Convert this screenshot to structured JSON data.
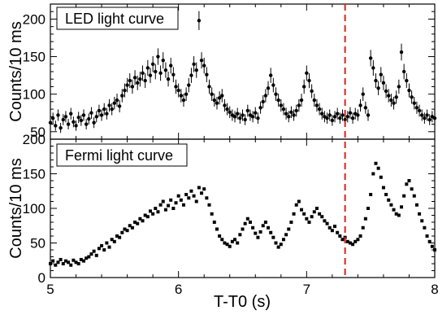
{
  "chart_data": [
    {
      "type": "scatter",
      "title": "",
      "legend_label": "LED light curve",
      "legend_position": "top-left",
      "xlabel": "T-T0 (s)",
      "ylabel": "Counts/10 ms",
      "xlim": [
        5,
        8
      ],
      "ylim": [
        40,
        220
      ],
      "y_ticks": [
        "50",
        "100",
        "150",
        "200"
      ],
      "error_bars": true,
      "marker_color": "#000000",
      "series": [
        {
          "x": [
            5.0,
            5.02,
            5.04,
            5.06,
            5.08,
            5.1,
            5.12,
            5.14,
            5.16,
            5.18,
            5.2,
            5.22,
            5.24,
            5.26,
            5.28,
            5.3,
            5.32,
            5.34,
            5.36,
            5.38,
            5.4,
            5.42,
            5.44,
            5.46,
            5.48,
            5.5,
            5.52,
            5.54,
            5.56,
            5.58,
            5.6,
            5.62,
            5.64,
            5.66,
            5.68,
            5.7,
            5.72,
            5.74,
            5.76,
            5.78,
            5.8,
            5.82,
            5.84,
            5.86,
            5.88,
            5.9,
            5.92,
            5.94,
            5.96,
            5.98,
            6.0,
            6.02,
            6.04,
            6.06,
            6.08,
            6.1,
            6.12,
            6.14,
            6.16,
            6.18,
            6.2,
            6.22,
            6.24,
            6.26,
            6.28,
            6.3,
            6.32,
            6.34,
            6.36,
            6.38,
            6.4,
            6.42,
            6.44,
            6.46,
            6.48,
            6.5,
            6.52,
            6.54,
            6.56,
            6.58,
            6.6,
            6.62,
            6.64,
            6.66,
            6.68,
            6.7,
            6.72,
            6.74,
            6.76,
            6.78,
            6.8,
            6.82,
            6.84,
            6.86,
            6.88,
            6.9,
            6.92,
            6.94,
            6.96,
            6.98,
            7.0,
            7.02,
            7.04,
            7.06,
            7.08,
            7.1,
            7.12,
            7.14,
            7.16,
            7.18,
            7.2,
            7.22,
            7.24,
            7.26,
            7.28,
            7.3,
            7.32,
            7.34,
            7.36,
            7.38,
            7.4,
            7.42,
            7.44,
            7.46,
            7.48,
            7.5,
            7.52,
            7.54,
            7.56,
            7.58,
            7.6,
            7.62,
            7.64,
            7.66,
            7.68,
            7.7,
            7.72,
            7.74,
            7.76,
            7.78,
            7.8,
            7.82,
            7.84,
            7.86,
            7.88,
            7.9,
            7.92,
            7.94,
            7.96,
            7.98,
            8.0
          ],
          "y": [
            62,
            68,
            58,
            72,
            55,
            66,
            70,
            60,
            74,
            63,
            58,
            69,
            65,
            72,
            60,
            67,
            75,
            62,
            70,
            78,
            72,
            80,
            74,
            85,
            80,
            88,
            92,
            84,
            98,
            105,
            112,
            118,
            110,
            122,
            115,
            120,
            128,
            118,
            135,
            125,
            140,
            130,
            150,
            128,
            145,
            132,
            120,
            138,
            126,
            110,
            105,
            98,
            92,
            100,
            112,
            125,
            140,
            132,
            198,
            145,
            138,
            126,
            110,
            100,
            92,
            88,
            95,
            98,
            85,
            80,
            76,
            72,
            70,
            74,
            68,
            72,
            66,
            78,
            72,
            70,
            75,
            68,
            82,
            90,
            98,
            108,
            125,
            112,
            100,
            92,
            85,
            80,
            74,
            70,
            76,
            72,
            78,
            85,
            92,
            110,
            128,
            118,
            104,
            92,
            85,
            80,
            74,
            70,
            68,
            72,
            65,
            70,
            74,
            68,
            72,
            66,
            70,
            75,
            68,
            74,
            72,
            85,
            100,
            82,
            72,
            148,
            135,
            118,
            108,
            126,
            115,
            104,
            98,
            92,
            88,
            96,
            110,
            156,
            130,
            118,
            105,
            96,
            88,
            82,
            78,
            72,
            68,
            72,
            66,
            70,
            68
          ]
        }
      ]
    },
    {
      "type": "scatter",
      "title": "",
      "legend_label": "Fermi light curve",
      "legend_position": "top-left",
      "xlabel": "T-T0 (s)",
      "ylabel": "Counts/10 ms",
      "xlim": [
        5,
        8
      ],
      "ylim": [
        0,
        200
      ],
      "x_ticks": [
        "5",
        "6",
        "7",
        "8"
      ],
      "y_ticks": [
        "0",
        "50",
        "100",
        "150",
        "200"
      ],
      "marker_color": "#000000",
      "series": [
        {
          "x": [
            5.0,
            5.02,
            5.04,
            5.06,
            5.08,
            5.1,
            5.12,
            5.14,
            5.16,
            5.18,
            5.2,
            5.22,
            5.24,
            5.26,
            5.28,
            5.3,
            5.32,
            5.34,
            5.36,
            5.38,
            5.4,
            5.42,
            5.44,
            5.46,
            5.48,
            5.5,
            5.52,
            5.54,
            5.56,
            5.58,
            5.6,
            5.62,
            5.64,
            5.66,
            5.68,
            5.7,
            5.72,
            5.74,
            5.76,
            5.78,
            5.8,
            5.82,
            5.84,
            5.86,
            5.88,
            5.9,
            5.92,
            5.94,
            5.96,
            5.98,
            6.0,
            6.02,
            6.04,
            6.06,
            6.08,
            6.1,
            6.12,
            6.14,
            6.16,
            6.18,
            6.2,
            6.22,
            6.24,
            6.26,
            6.28,
            6.3,
            6.32,
            6.34,
            6.36,
            6.38,
            6.4,
            6.42,
            6.44,
            6.46,
            6.48,
            6.5,
            6.52,
            6.54,
            6.56,
            6.58,
            6.6,
            6.62,
            6.64,
            6.66,
            6.68,
            6.7,
            6.72,
            6.74,
            6.76,
            6.78,
            6.8,
            6.82,
            6.84,
            6.86,
            6.88,
            6.9,
            6.92,
            6.94,
            6.96,
            6.98,
            7.0,
            7.02,
            7.04,
            7.06,
            7.08,
            7.1,
            7.12,
            7.14,
            7.16,
            7.18,
            7.2,
            7.22,
            7.24,
            7.26,
            7.28,
            7.3,
            7.32,
            7.34,
            7.36,
            7.38,
            7.4,
            7.42,
            7.44,
            7.46,
            7.48,
            7.5,
            7.52,
            7.54,
            7.56,
            7.58,
            7.6,
            7.62,
            7.64,
            7.66,
            7.68,
            7.7,
            7.72,
            7.74,
            7.76,
            7.78,
            7.8,
            7.82,
            7.84,
            7.86,
            7.88,
            7.9,
            7.92,
            7.94,
            7.96,
            7.98,
            8.0
          ],
          "y": [
            20,
            24,
            18,
            22,
            26,
            20,
            24,
            22,
            18,
            25,
            22,
            20,
            26,
            24,
            28,
            30,
            34,
            38,
            32,
            42,
            46,
            40,
            50,
            44,
            55,
            52,
            60,
            58,
            65,
            70,
            68,
            75,
            72,
            80,
            78,
            85,
            82,
            90,
            88,
            96,
            92,
            100,
            95,
            105,
            110,
            98,
            104,
            112,
            100,
            108,
            118,
            112,
            105,
            120,
            115,
            125,
            118,
            110,
            130,
            122,
            128,
            115,
            105,
            92,
            80,
            70,
            60,
            55,
            50,
            48,
            45,
            52,
            55,
            50,
            62,
            70,
            78,
            85,
            80,
            72,
            64,
            58,
            66,
            75,
            80,
            72,
            65,
            58,
            50,
            44,
            48,
            55,
            62,
            70,
            80,
            92,
            105,
            110,
            98,
            92,
            85,
            80,
            88,
            95,
            100,
            92,
            88,
            82,
            78,
            72,
            68,
            74,
            65,
            60,
            55,
            58,
            52,
            50,
            48,
            52,
            55,
            60,
            72,
            85,
            100,
            120,
            150,
            165,
            158,
            145,
            130,
            120,
            112,
            105,
            98,
            92,
            90,
            102,
            118,
            135,
            140,
            128,
            118,
            105,
            92,
            82,
            72,
            60,
            52,
            45,
            40
          ]
        }
      ]
    }
  ],
  "marker": {
    "label": "",
    "x": 7.3,
    "color": "#e0201b",
    "style": "dashed"
  }
}
